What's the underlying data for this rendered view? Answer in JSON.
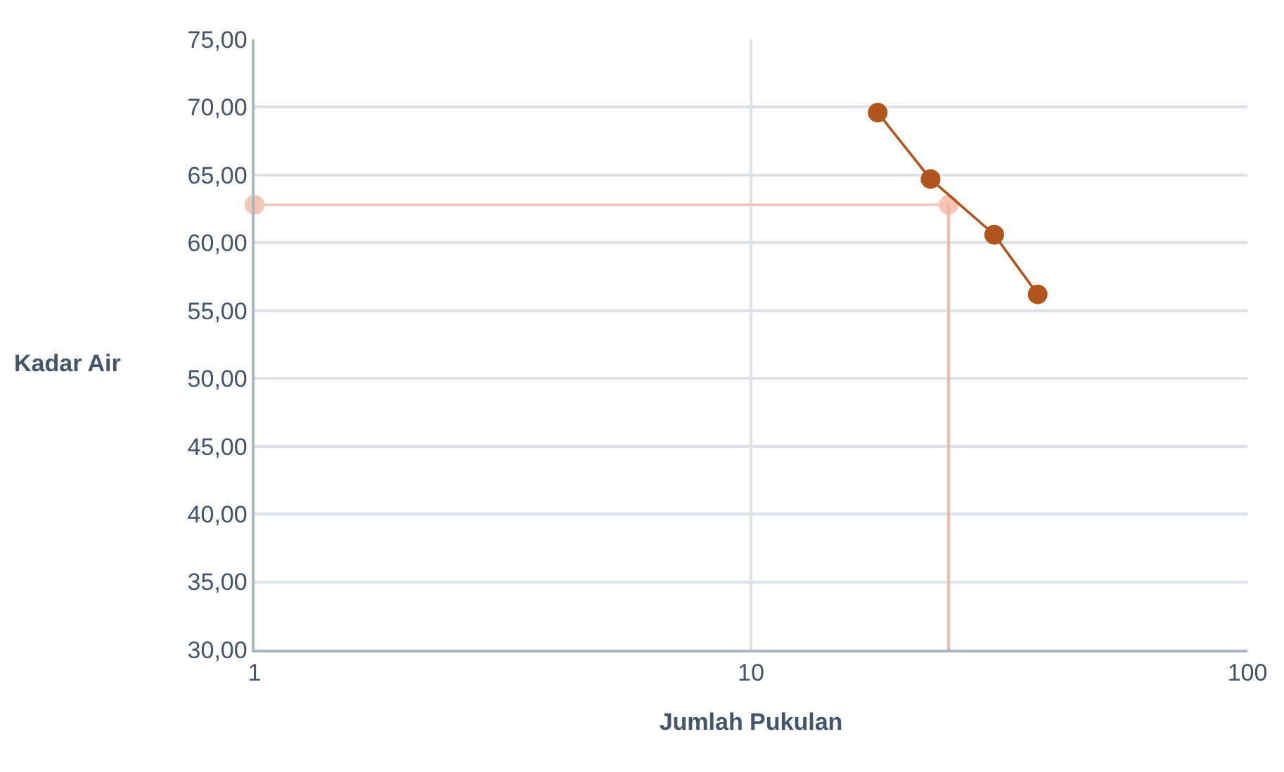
{
  "chart_data": {
    "type": "line",
    "xlabel": "Jumlah Pukulan",
    "ylabel": "Kadar Air",
    "log": "x",
    "grid": true,
    "xlim": [
      1,
      100
    ],
    "xticks": [
      1,
      10,
      100
    ],
    "ylim": [
      30,
      75
    ],
    "yticks": [
      {
        "value": 30,
        "label": "30,00"
      },
      {
        "value": 35,
        "label": "35,00"
      },
      {
        "value": 40,
        "label": "40,00"
      },
      {
        "value": 45,
        "label": "45,00"
      },
      {
        "value": 50,
        "label": "50,00"
      },
      {
        "value": 55,
        "label": "55,00"
      },
      {
        "value": 60,
        "label": "60,00"
      },
      {
        "value": 65,
        "label": "65,00"
      },
      {
        "value": 70,
        "label": "70,00"
      },
      {
        "value": 75,
        "label": "75,00"
      }
    ],
    "series": [
      {
        "color": "#f7c5b3",
        "marker": "circle",
        "x": [
          1,
          25
        ],
        "values": [
          62.8,
          62.8
        ]
      },
      {
        "color": "#f4b29c",
        "marker": "none",
        "x": [
          25,
          25
        ],
        "values": [
          62.8,
          30
        ]
      },
      {
        "color": "#b0561d",
        "marker": "circle",
        "x": [
          18.0,
          23.0,
          30.9,
          37.8
        ],
        "values": [
          69.6,
          64.7,
          60.6,
          56.2
        ]
      }
    ]
  }
}
